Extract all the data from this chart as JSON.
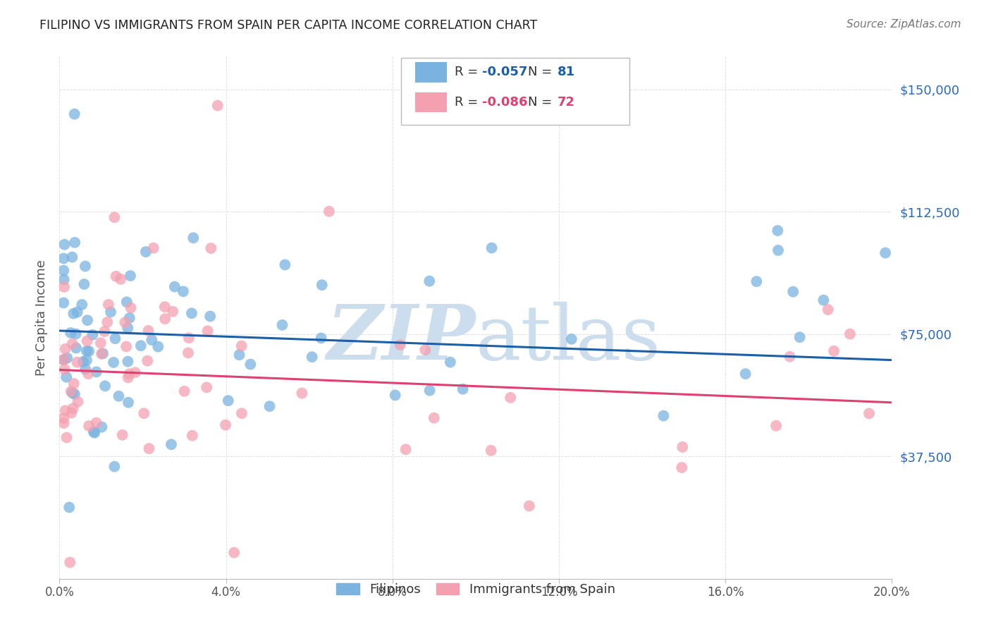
{
  "title": "FILIPINO VS IMMIGRANTS FROM SPAIN PER CAPITA INCOME CORRELATION CHART",
  "source": "Source: ZipAtlas.com",
  "ylabel": "Per Capita Income",
  "ytick_labels": [
    "$37,500",
    "$75,000",
    "$112,500",
    "$150,000"
  ],
  "ytick_values": [
    37500,
    75000,
    112500,
    150000
  ],
  "ymin": 0,
  "ymax": 160000,
  "xmin": 0.0,
  "xmax": 0.2,
  "R_filipino": -0.057,
  "N_filipino": 81,
  "R_spain": -0.086,
  "N_spain": 72,
  "color_filipino": "#7ab3e0",
  "color_spain": "#f4a0b0",
  "trend_color_filipino": "#1a5fa8",
  "trend_color_spain": "#e04070",
  "watermark_color": "#ccdded",
  "background_color": "#ffffff",
  "grid_color": "#dddddd",
  "title_color": "#222222",
  "axis_label_color": "#555555",
  "ytick_color": "#2a6abf",
  "xtick_color": "#555555",
  "source_color": "#777777"
}
